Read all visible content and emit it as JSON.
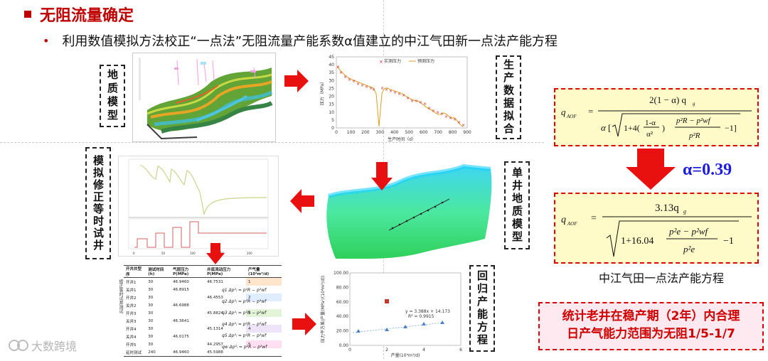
{
  "title": "无阻流量确定",
  "subtitle": "利用数值模拟方法校正“一点法”无阻流量产能系数α值建立的中江气田新一点法产能方程",
  "labels": {
    "geo_model": "地质模型",
    "prod_fit": "生产数据拟合",
    "sim_test": "模拟修正等时试井",
    "single_well": "单井地质模型",
    "regression": "回归产能方程"
  },
  "alpha": "α=0.39",
  "formula_caption": "中江气田一点法产能方程",
  "note_line1": "统计老井在稳产期（2年）内合理",
  "note_line2": "日产气能力范围为无阻1/5-1/7",
  "watermark": "大数跨境",
  "colors": {
    "accent": "#c00000",
    "arrow": "#e8110f",
    "alpha": "#1c1ce0"
  },
  "fit_chart": {
    "legend_measured": "实测压力",
    "legend_predicted": "预测压力",
    "xlabel": "生产时间（d）",
    "ylabel": "压力（MPa）",
    "x_ticks": [
      "0",
      "100",
      "200",
      "300",
      "400",
      "500",
      "600",
      "700",
      "800",
      "900"
    ],
    "y_ticks": [
      "0",
      "5",
      "10",
      "15",
      "20",
      "25",
      "30",
      "35",
      "40",
      "45"
    ]
  },
  "regression_chart": {
    "equation": "y = 3.388x + 14.173",
    "r2": "R² = 0.9915",
    "xlabel": "产量(10⁴m³/d)",
    "ylabel": "压力平方差/产量(MPa²/(10⁴m³/d))",
    "y_ticks": [
      "100.00",
      "80.00",
      "60.00",
      "40.00",
      "20.00",
      "0.00"
    ],
    "x_ticks": [
      "0",
      "2",
      "4",
      "6"
    ]
  },
  "table": {
    "headers": [
      "开井井型序",
      "测试时间(h)",
      "气层压力P(MPa)",
      "井底流动压力P(MPa)",
      "产气量(10⁴m³/d)"
    ],
    "side_label": "修正等时试井测试",
    "rows": [
      [
        "开井1",
        "30",
        "46.9460",
        "46.7531",
        "1"
      ],
      [
        "关井1",
        "30",
        "46.8915",
        "",
        ""
      ],
      [
        "开井2",
        "30",
        "",
        "46.4553",
        "2"
      ],
      [
        "关井2",
        "30",
        "46.6988",
        "",
        ""
      ],
      [
        "开井3",
        "30",
        "",
        "45.8824",
        "3"
      ],
      [
        "关井3",
        "30",
        "46.3641",
        "",
        ""
      ],
      [
        "开井4",
        "30",
        "",
        "45.1314",
        "4"
      ],
      [
        "关井4",
        "30",
        "46.0175",
        "",
        ""
      ],
      [
        "开井5",
        "30",
        "",
        "44.2957",
        "5"
      ],
      [
        "延时测试",
        "240",
        "46.9460",
        "45.5988",
        ""
      ]
    ],
    "q_labels": [
      "q1",
      "q2",
      "q3",
      "q4",
      "q5",
      "qw"
    ]
  }
}
